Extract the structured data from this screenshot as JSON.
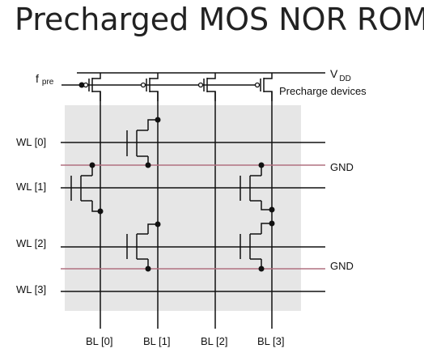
{
  "title": "Precharged MOS NOR ROM",
  "labels": {
    "vdd_main": "V",
    "vdd_sub": "DD",
    "fpre_main": "f",
    "fpre_sub": "pre",
    "precharge": "Precharge devices",
    "gnd_top": "GND",
    "gnd_bottom": "GND"
  },
  "word_lines": [
    "WL [0]",
    "WL [1]",
    "WL [2]",
    "WL [3]"
  ],
  "bit_lines": [
    "BL [0]",
    "BL [1]",
    "BL [2]",
    "BL [3]"
  ],
  "colors": {
    "array_bg": "#e6e6e6",
    "gnd_line": "#b07080",
    "wire": "#111111"
  }
}
